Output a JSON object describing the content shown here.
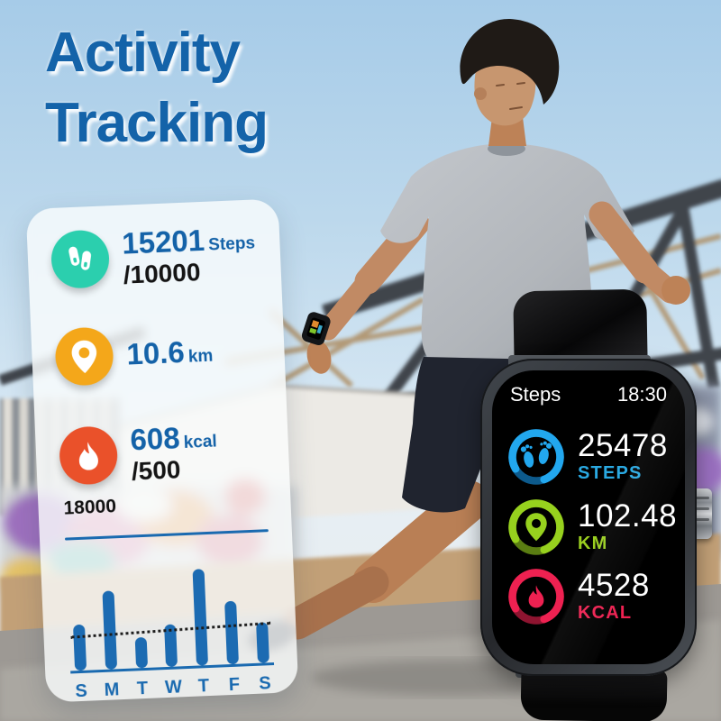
{
  "title": {
    "line1": "Activity",
    "line2": "Tracking",
    "color": "#1463a9"
  },
  "card": {
    "stats": [
      {
        "icon": "footsteps-icon",
        "icon_bg": "#2bcfae",
        "value": "15201",
        "unit": "Steps",
        "sub": "/10000"
      },
      {
        "icon": "location-pin-icon",
        "icon_bg": "#f4a71a",
        "value": "10.6",
        "unit": "km",
        "sub": ""
      },
      {
        "icon": "flame-icon",
        "icon_bg": "#ea512a",
        "value": "608",
        "unit": "kcal",
        "sub": "/500"
      }
    ]
  },
  "chart_data": {
    "type": "bar",
    "categories": [
      "S",
      "M",
      "T",
      "W",
      "T",
      "F",
      "S"
    ],
    "values": [
      6600,
      11200,
      4400,
      6000,
      13700,
      9000,
      5800
    ],
    "ylim": [
      0,
      18000
    ],
    "axis_max_label": "18000",
    "goal_line": 5000,
    "bar_color": "#1c6bb2",
    "grid": false,
    "title": "",
    "xlabel": "",
    "ylabel": ""
  },
  "watch": {
    "header_label": "Steps",
    "time": "18:30",
    "metrics": [
      {
        "icon": "footsteps-icon",
        "value": "25478",
        "label": "STEPS",
        "ring_color": "#22a7ee",
        "ring_dark": "#0d5a8c",
        "label_color": "#2aa9e2"
      },
      {
        "icon": "location-pin-icon",
        "value": "102.48",
        "label": "KM",
        "ring_color": "#97d11e",
        "ring_dark": "#5a7d12",
        "label_color": "#9ace1f"
      },
      {
        "icon": "flame-icon",
        "value": "4528",
        "label": "KCAL",
        "ring_color": "#ee2151",
        "ring_dark": "#8e1430",
        "label_color": "#ee2151"
      }
    ]
  }
}
